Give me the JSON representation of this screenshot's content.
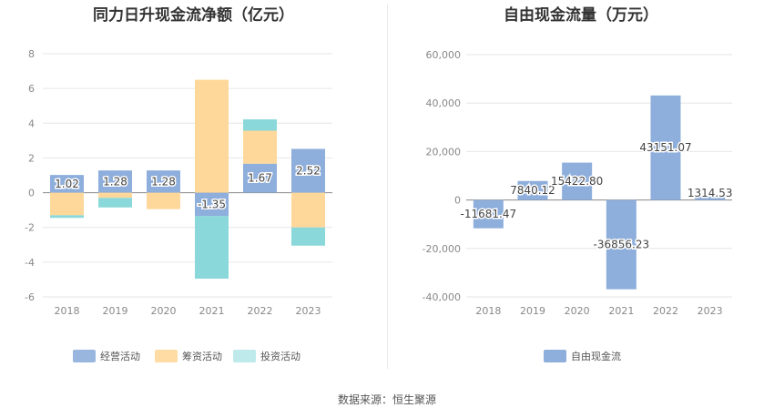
{
  "source_text": "数据来源：恒生聚源",
  "chart_data": [
    {
      "type": "bar",
      "stacked": true,
      "title": "同力日升现金流净额（亿元）",
      "categories": [
        "2018",
        "2019",
        "2020",
        "2021",
        "2022",
        "2023"
      ],
      "ylim": [
        -6,
        8
      ],
      "yticks": [
        -6,
        -4,
        -2,
        0,
        2,
        4,
        6,
        8
      ],
      "grid": true,
      "legend": "bottom",
      "series": [
        {
          "name": "经营活动",
          "color": "#8eaedc",
          "values": [
            1.02,
            1.28,
            1.28,
            -1.35,
            1.67,
            2.52
          ]
        },
        {
          "name": "筹资活动",
          "color": "#fed89a",
          "values": [
            -1.3,
            -0.3,
            -0.95,
            6.5,
            1.9,
            -2.0
          ]
        },
        {
          "name": "投资活动",
          "color": "#8ad8da",
          "values": [
            -0.15,
            -0.55,
            0.0,
            -3.6,
            0.65,
            -1.05
          ]
        }
      ],
      "data_labels": [
        "1.02",
        "1.28",
        "1.28",
        "-1.35",
        "1.67",
        "2.52"
      ]
    },
    {
      "type": "bar",
      "title": "自由现金流量（万元）",
      "categories": [
        "2018",
        "2019",
        "2020",
        "2021",
        "2022",
        "2023"
      ],
      "ylim": [
        -40000,
        60000
      ],
      "yticks": [
        "-40,000",
        "-20,000",
        "0",
        "20,000",
        "40,000",
        "60,000"
      ],
      "grid": true,
      "legend": "bottom",
      "series": [
        {
          "name": "自由现金流",
          "color": "#8eaedc",
          "values": [
            -11681.47,
            7840.12,
            15422.8,
            -36856.23,
            43151.07,
            1314.53
          ]
        }
      ],
      "data_labels": [
        "-11681.47",
        "7840.12",
        "15422.80",
        "-36856.23",
        "43151.07",
        "1314.53"
      ]
    }
  ]
}
